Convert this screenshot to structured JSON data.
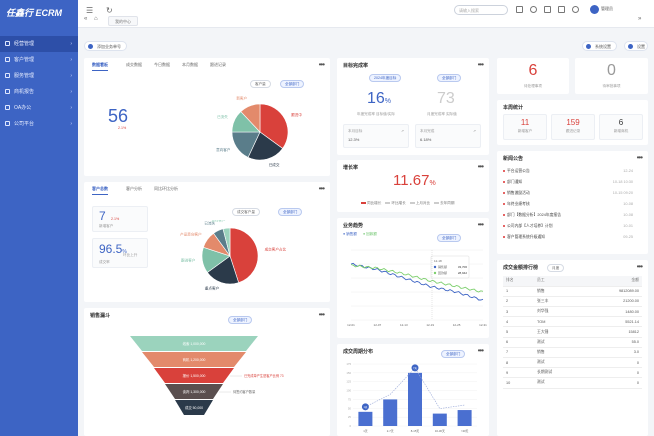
{
  "app": {
    "logo": "任鑫行 ECRM"
  },
  "sidebar": {
    "items": [
      {
        "label": "经营管理",
        "active": true
      },
      {
        "label": "客户管理"
      },
      {
        "label": "服务管理"
      },
      {
        "label": "商机报告"
      },
      {
        "label": "OA办公"
      },
      {
        "label": "公司平台"
      }
    ]
  },
  "topbar": {
    "tab": "我的中心",
    "search_placeholder": "请输入搜索",
    "user": "管理员"
  },
  "toolbar": {
    "add_label": "添加业务单号",
    "btn1": "系统设置",
    "btn2": "设置"
  },
  "overview": {
    "title": "数据看板",
    "tabs": [
      "成交数据",
      "今日数据",
      "本月数据",
      "跟进记录"
    ],
    "filter": "客户量",
    "filter2": "全部部门",
    "number": "56",
    "change": "2.1%",
    "pie_labels": [
      "跟进中",
      "已成交",
      "意向客户",
      "已流失",
      "新客户"
    ],
    "pie_values": [
      35,
      22,
      18,
      13,
      12
    ],
    "colors": [
      "#d9413b",
      "#2b3a4a",
      "#5a7d8a",
      "#7fc1a8",
      "#e38a6b"
    ]
  },
  "target": {
    "title": "目标完成率",
    "filter": "2024年度目标",
    "filter2": "全部部门",
    "pct1": "16",
    "pct1_sub": "年度完成率  目标值/实际",
    "pct2": "73",
    "pct2_sub": "月度完成率  实际值",
    "box1_label": "本月目标",
    "box1_val": "12.3%",
    "box2_label": "本月完成",
    "box2_val": "6.18%"
  },
  "kpi": [
    {
      "num": "6",
      "label": "待处理事项"
    },
    {
      "num": "0",
      "label": "待审批事项"
    }
  ],
  "funnel_title": "销售漏斗",
  "stats": {
    "title": "本周统计",
    "items": [
      {
        "num": "11",
        "label": "新增客户",
        "color": "#d9413b"
      },
      {
        "num": "159",
        "label": "跟进记录",
        "color": "#d9413b"
      },
      {
        "num": "6",
        "label": "新增商机",
        "color": "#333"
      }
    ]
  },
  "growth": {
    "title": "增长率",
    "value": "11.67",
    "unit": "%",
    "legend": [
      "同比增长",
      "环比增长",
      "上月对比",
      "去年同期"
    ]
  },
  "customer2": {
    "title": "客户总数",
    "tabs": [
      "客户分析",
      "同比环比分析"
    ],
    "filter": "成交客户量",
    "filter2": "全部部门",
    "n1": "7",
    "n1_sub": "新增客户",
    "n1_change": "2.1%",
    "n2": "96.5",
    "n2_unit": "%",
    "n2_sub": "成交率",
    "n2_change": "环比上升",
    "pie_labels": [
      "成交客户占比",
      "重点客户",
      "跟进客户",
      "产品意向客户",
      "已流失",
      "潜在客户"
    ],
    "pie_values": [
      45,
      20,
      15,
      10,
      6,
      4
    ],
    "colors": [
      "#d9413b",
      "#2b3a4a",
      "#7fc1a8",
      "#e38a6b",
      "#5a7d8a",
      "#9bd3bd"
    ]
  },
  "news": {
    "title": "新闻公告",
    "items": [
      {
        "text": "平台运营公告",
        "date": "12-24"
      },
      {
        "text": "部门通知",
        "date": "10-18 10:30"
      },
      {
        "text": "销售激励活动",
        "date": "10-15 09:20"
      },
      {
        "text": "年终业绩考核",
        "date": "10-08"
      },
      {
        "text": "部门【数据分析】2024年度报告",
        "date": "10-08"
      },
      {
        "text": "公司内部【人才培养】计划",
        "date": "10-01"
      },
      {
        "text": "客户管理系统升级通知",
        "date": "09-25"
      }
    ]
  },
  "trend": {
    "title": "业务趋势",
    "legend": [
      "销售额",
      "回款额"
    ],
    "filter": "全部部门",
    "tooltip_title": "12-18",
    "tooltip": [
      {
        "name": "销售额",
        "value": "33,706"
      },
      {
        "name": "回款额",
        "value": "28,942"
      }
    ],
    "x_labels": [
      "12-01",
      "12-07",
      "12-13",
      "12-19",
      "12-25",
      "12-31"
    ]
  },
  "ranking": {
    "title": "成交金额排行榜",
    "tag": "月度",
    "headers": [
      "排名",
      "员工",
      "金额"
    ],
    "rows": [
      {
        "rank": "1",
        "name": "销售",
        "amount": "9812089.00"
      },
      {
        "rank": "2",
        "name": "张三丰",
        "amount": "21200.00"
      },
      {
        "rank": "3",
        "name": "刘华强",
        "amount": "1480.00"
      },
      {
        "rank": "4",
        "name": "TOM",
        "amount": "5521.14"
      },
      {
        "rank": "5",
        "name": "王大锤",
        "amount": "15812"
      },
      {
        "rank": "6",
        "name": "测试",
        "amount": "55.0"
      },
      {
        "rank": "7",
        "name": "销售",
        "amount": "3.0"
      },
      {
        "rank": "8",
        "name": "测试",
        "amount": "0"
      },
      {
        "rank": "9",
        "name": "长期测试",
        "amount": "0"
      },
      {
        "rank": "10",
        "name": "测试",
        "amount": "0"
      }
    ]
  },
  "funnel": {
    "title": "销售漏斗",
    "filter": "全部部门",
    "stages": [
      {
        "label": "线索 1,000,000",
        "side": ""
      },
      {
        "label": "商机 1,200,000",
        "side": ""
      },
      {
        "label": "报价 1,500,000",
        "side": "已完成单产生是客户比例 73"
      },
      {
        "label": "谈判 1,300,000",
        "side": "待签约客户数量"
      },
      {
        "label": "成交 50,000",
        "side": ""
      }
    ],
    "colors": [
      "#9bd3bd",
      "#e38a6b",
      "#d9413b",
      "#5a4f4f",
      "#2b3a4a"
    ]
  },
  "barchart": {
    "title": "成交周期分布",
    "filter": "全部部门",
    "data_labels": [
      "1天",
      "7天",
      "",
      "",
      ""
    ]
  },
  "chart_data": [
    {
      "type": "bar",
      "title": "成交周期分布",
      "categories": [
        "1天",
        "2-7天",
        "8-15天",
        "16-30天",
        ">30天"
      ],
      "values": [
        40,
        75,
        150,
        35,
        45
      ],
      "annotations": [
        "1天",
        "7天"
      ],
      "ylim": [
        0,
        175
      ],
      "yticks": [
        0,
        25,
        50,
        75,
        100,
        125,
        150,
        175
      ]
    },
    {
      "type": "line",
      "title": "业务趋势",
      "x": [
        "12-01",
        "12-07",
        "12-13",
        "12-19",
        "12-25",
        "12-31"
      ],
      "series": [
        {
          "name": "销售额",
          "values": [
            40,
            36,
            30,
            24,
            20,
            14
          ]
        },
        {
          "name": "回款额",
          "values": [
            39,
            37,
            33,
            28,
            24,
            20
          ]
        }
      ],
      "ylim": [
        0,
        50
      ]
    }
  ]
}
